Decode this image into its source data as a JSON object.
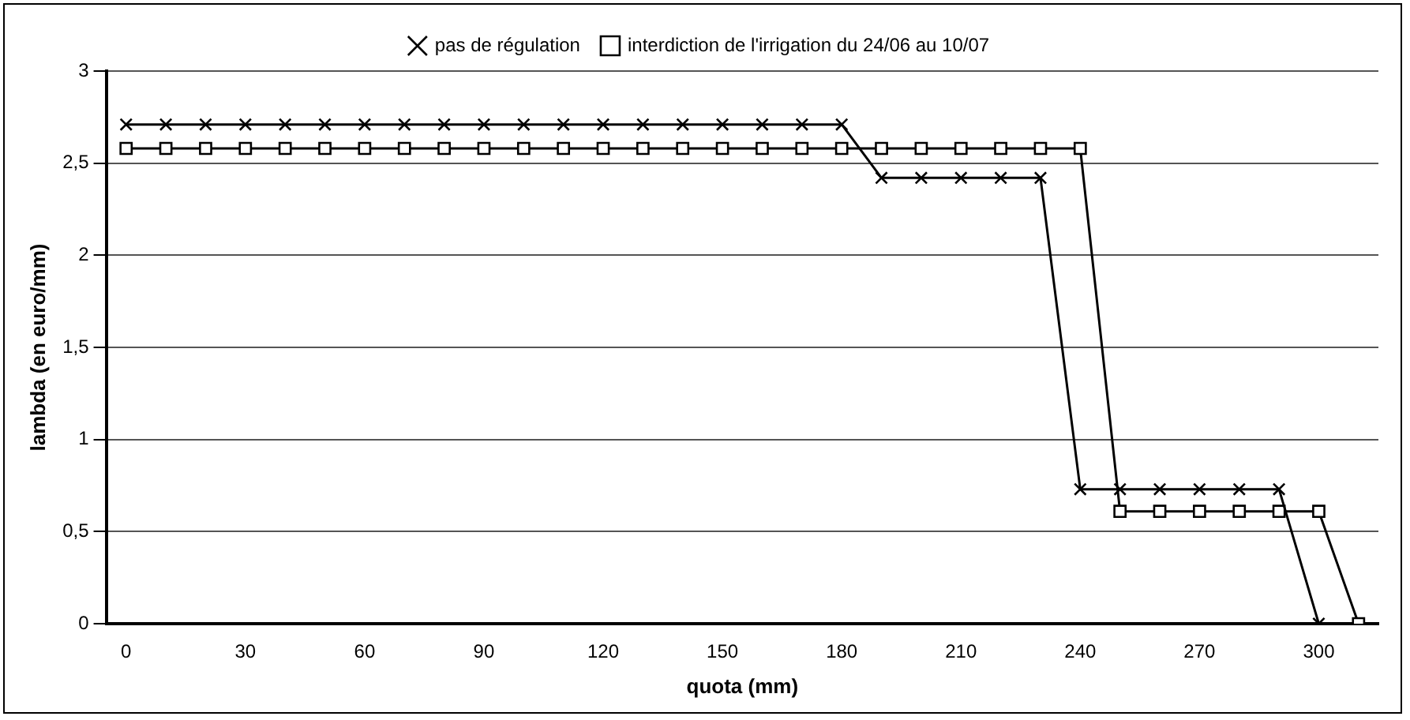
{
  "chart_data": {
    "type": "line",
    "xlabel": "quota (mm)",
    "ylabel": "lambda (en euro/mm)",
    "categories": [
      "0",
      null,
      null,
      "30",
      null,
      null,
      "60",
      null,
      null,
      "90",
      null,
      null,
      "120",
      null,
      null,
      "150",
      null,
      null,
      "180",
      null,
      null,
      "210",
      null,
      null,
      "240",
      null,
      null,
      "270",
      null,
      null,
      "300",
      null
    ],
    "series": [
      {
        "name": "pas de régulation",
        "color": "#000000",
        "marker": "cross",
        "values": [
          2.71,
          2.71,
          2.71,
          2.71,
          2.71,
          2.71,
          2.71,
          2.71,
          2.71,
          2.71,
          2.71,
          2.71,
          2.71,
          2.71,
          2.71,
          2.71,
          2.71,
          2.71,
          2.71,
          2.42,
          2.42,
          2.42,
          2.42,
          2.42,
          0.73,
          0.73,
          0.73,
          0.73,
          0.73,
          0.73,
          0,
          null
        ]
      },
      {
        "name": "interdiction de l'irrigation du 24/06 au 10/07",
        "color": "#000000",
        "marker": "square",
        "values": [
          2.58,
          2.58,
          2.58,
          2.58,
          2.58,
          2.58,
          2.58,
          2.58,
          2.58,
          2.58,
          2.58,
          2.58,
          2.58,
          2.58,
          2.58,
          2.58,
          2.58,
          2.58,
          2.58,
          2.58,
          2.58,
          2.58,
          2.58,
          2.58,
          2.58,
          0.61,
          0.61,
          0.61,
          0.61,
          0.61,
          0.61,
          0
        ]
      }
    ],
    "ylim": [
      0,
      3
    ],
    "yticks": [
      0,
      {
        "value": 0.5,
        "label": "0,5"
      },
      1,
      {
        "value": 1.5,
        "label": "1,5"
      },
      2,
      {
        "value": 2.5,
        "label": "2,5"
      },
      3
    ],
    "grid": "y",
    "legend": "top",
    "line_style": "solid"
  }
}
